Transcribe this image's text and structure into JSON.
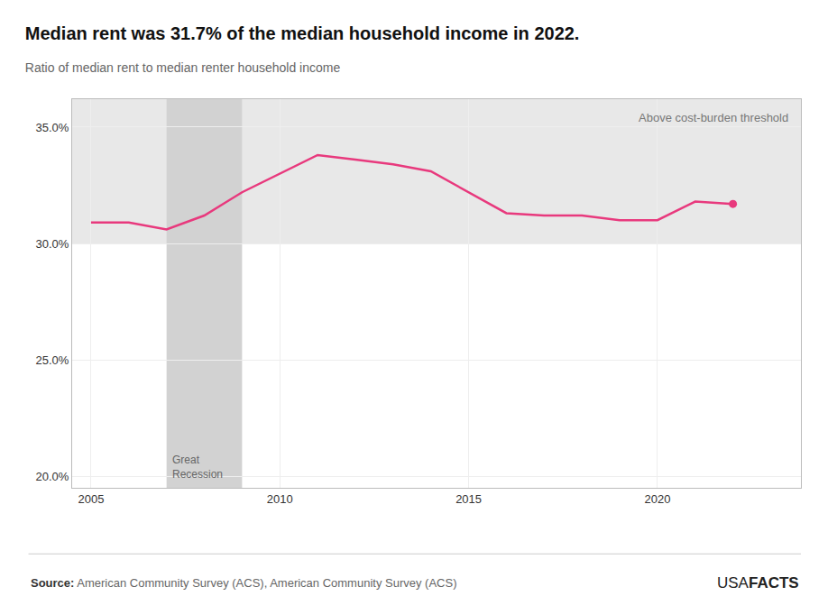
{
  "chart_data": {
    "type": "line",
    "title": "Median rent was 31.7% of the median household income in 2022.",
    "subtitle": "Ratio of median rent to median renter household income",
    "x": [
      2005,
      2006,
      2007,
      2008,
      2009,
      2010,
      2011,
      2012,
      2013,
      2014,
      2015,
      2016,
      2017,
      2018,
      2019,
      2020,
      2021,
      2022
    ],
    "values": [
      30.9,
      30.9,
      30.6,
      31.2,
      32.2,
      33.0,
      33.8,
      33.6,
      33.4,
      33.1,
      32.2,
      31.3,
      31.2,
      31.2,
      31.0,
      31.0,
      31.8,
      31.7
    ],
    "color": "#e8397d",
    "marker": "circle",
    "xlim": [
      2004.5,
      2023.8
    ],
    "xticks": [
      2005,
      2010,
      2015,
      2020
    ],
    "ylim": [
      19.5,
      36.2
    ],
    "yticks": [
      {
        "value": 20.0,
        "label": "20.0%"
      },
      {
        "value": 25.0,
        "label": "25.0%"
      },
      {
        "value": 30.0,
        "label": "30.0%"
      },
      {
        "value": 35.0,
        "label": "35.0%"
      }
    ],
    "grid": true,
    "threshold": {
      "value": 30.0,
      "label": "Above cost-burden threshold",
      "color": "#e8e8e8"
    },
    "recession": {
      "start": 2007,
      "end": 2009,
      "label": "Great\nRecession",
      "color": "#d2d2d2"
    },
    "source_label": "Source:",
    "source": "American Community Survey (ACS), American Community Survey (ACS)",
    "logo": [
      "USA",
      "FACTS"
    ]
  }
}
